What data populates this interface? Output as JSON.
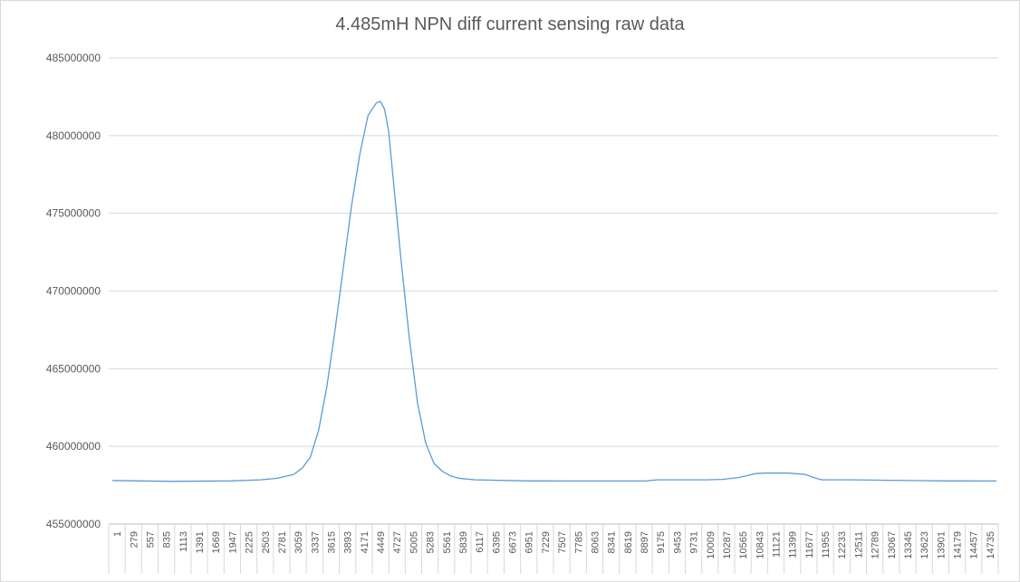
{
  "chart_data": {
    "type": "line",
    "title": "4.485mH NPN diff current sensing raw data",
    "xlabel": "",
    "ylabel": "",
    "ylim": [
      455000000,
      485000000
    ],
    "yticks": [
      455000000,
      460000000,
      465000000,
      470000000,
      475000000,
      480000000,
      485000000
    ],
    "ytick_labels": [
      "455000000",
      "460000000",
      "465000000",
      "470000000",
      "475000000",
      "480000000",
      "485000000"
    ],
    "xlim": [
      1,
      14900
    ],
    "xtick_labels": [
      "1",
      "279",
      "557",
      "835",
      "1113",
      "1391",
      "1669",
      "1947",
      "2225",
      "2503",
      "2781",
      "3059",
      "3337",
      "3615",
      "3893",
      "4171",
      "4449",
      "4727",
      "5005",
      "5283",
      "5561",
      "5839",
      "6117",
      "6395",
      "6673",
      "6951",
      "7229",
      "7507",
      "7785",
      "8063",
      "8341",
      "8619",
      "8897",
      "9175",
      "9453",
      "9731",
      "10009",
      "10287",
      "10565",
      "10843",
      "11121",
      "11399",
      "11677",
      "11955",
      "12233",
      "12511",
      "12789",
      "13067",
      "13345",
      "13623",
      "13901",
      "14179",
      "14457",
      "14735"
    ],
    "grid": true,
    "legend": "none",
    "line_color": "#5b9bd5",
    "series": [
      {
        "x": [
          1,
          1000,
          2000,
          2500,
          2781,
          3059,
          3200,
          3337,
          3476,
          3615,
          3754,
          3893,
          4032,
          4171,
          4310,
          4449,
          4520,
          4588,
          4657,
          4727,
          4866,
          5005,
          5144,
          5283,
          5422,
          5561,
          5700,
          5839,
          6117,
          7000,
          8000,
          9000,
          9175,
          10000,
          10287,
          10565,
          10843,
          11000,
          11399,
          11677,
          11816,
          11955,
          12500,
          13067,
          14000,
          14900
        ],
        "values": [
          457800000,
          457750000,
          457780000,
          457850000,
          457950000,
          458200000,
          458600000,
          459300000,
          461000000,
          463800000,
          467500000,
          471500000,
          475500000,
          478800000,
          481300000,
          482100000,
          482200000,
          481700000,
          480300000,
          477500000,
          472000000,
          467000000,
          462800000,
          460200000,
          458900000,
          458400000,
          458100000,
          457950000,
          457850000,
          457780000,
          457770000,
          457780000,
          457850000,
          457850000,
          457880000,
          458000000,
          458250000,
          458280000,
          458280000,
          458200000,
          458000000,
          457850000,
          457850000,
          457820000,
          457780000,
          457770000
        ]
      }
    ]
  }
}
